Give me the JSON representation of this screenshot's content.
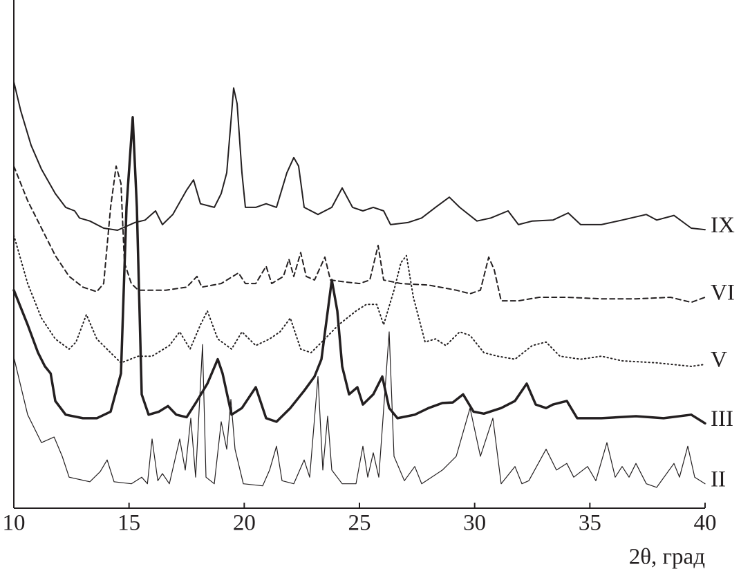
{
  "chart_data": {
    "type": "line",
    "x_label": "2θ, град",
    "xlim": [
      10,
      40
    ],
    "xticks": [
      10,
      15,
      20,
      25,
      30,
      35,
      40
    ],
    "ylim": [
      0,
      100
    ],
    "grid": false,
    "series": [
      {
        "name": "IX",
        "color": "#231f20",
        "width": 2,
        "dash": "none",
        "x": [
          10,
          10.3,
          10.75,
          11.2,
          11.8,
          12.25,
          12.64,
          12.85,
          13.3,
          13.9,
          14.5,
          15.25,
          15.7,
          16.15,
          16.45,
          16.9,
          17.5,
          17.8,
          18.1,
          18.7,
          19.0,
          19.24,
          19.45,
          19.54,
          19.69,
          19.9,
          20.05,
          20.5,
          20.95,
          21.4,
          21.85,
          22.15,
          22.36,
          22.6,
          23.2,
          23.8,
          24.25,
          24.7,
          25.15,
          25.6,
          26.05,
          26.35,
          27.1,
          27.7,
          28.3,
          28.9,
          29.35,
          30.1,
          30.7,
          31.45,
          31.9,
          32.5,
          33.4,
          34.06,
          34.6,
          35.5,
          36.4,
          37.45,
          37.9,
          38.65,
          39.4,
          40
        ],
        "values": [
          83.9,
          78.2,
          71.4,
          66.7,
          61.9,
          59.2,
          58.5,
          57.1,
          56.5,
          55.1,
          54.7,
          56.2,
          56.7,
          58.5,
          55.8,
          57.8,
          62.6,
          64.6,
          59.9,
          59.2,
          61.9,
          66.0,
          77.6,
          82.7,
          79.6,
          66.0,
          59.2,
          59.2,
          59.9,
          59.2,
          66.0,
          69.0,
          67.3,
          59.2,
          57.8,
          59.2,
          63.0,
          59.2,
          58.5,
          59.2,
          58.5,
          55.8,
          56.2,
          57.1,
          59.2,
          61.2,
          59.2,
          56.5,
          57.1,
          58.5,
          55.8,
          56.5,
          56.7,
          58.1,
          55.8,
          55.8,
          56.7,
          57.8,
          56.7,
          57.6,
          55.1,
          54.8
        ]
      },
      {
        "name": "VI",
        "color": "#231f20",
        "width": 2,
        "dash": "7 5",
        "x": [
          10,
          10.6,
          11.2,
          11.8,
          12.4,
          13.0,
          13.6,
          13.9,
          14.2,
          14.44,
          14.65,
          14.8,
          15.1,
          15.4,
          16.6,
          17.5,
          17.95,
          18.16,
          19.0,
          19.75,
          20.05,
          20.5,
          20.95,
          21.19,
          21.7,
          21.94,
          22.15,
          22.45,
          22.69,
          23.05,
          23.5,
          23.74,
          24.4,
          25.0,
          25.45,
          25.81,
          26.05,
          26.8,
          28.0,
          29.2,
          29.8,
          30.25,
          30.61,
          30.85,
          31.15,
          31.9,
          32.8,
          34.0,
          35.5,
          37.0,
          38.5,
          39.4,
          40
        ],
        "values": [
          67.3,
          60.5,
          55.1,
          49.7,
          45.6,
          43.5,
          42.6,
          44.2,
          59.2,
          67.3,
          63.9,
          48.3,
          44.2,
          42.9,
          42.9,
          43.5,
          45.6,
          43.5,
          44.2,
          46.3,
          44.2,
          44.2,
          47.6,
          44.2,
          45.6,
          49.0,
          45.6,
          50.3,
          45.6,
          44.9,
          49.4,
          44.9,
          44.5,
          44.2,
          44.9,
          51.7,
          44.9,
          44.2,
          43.9,
          42.9,
          42.2,
          42.9,
          49.4,
          46.9,
          40.8,
          40.8,
          41.5,
          41.5,
          41.2,
          41.2,
          41.5,
          40.5,
          41.5
        ]
      },
      {
        "name": "V",
        "color": "#231f20",
        "width": 2,
        "dash": "1.5 4",
        "x": [
          10,
          10.6,
          11.2,
          11.8,
          12.4,
          12.7,
          13.15,
          13.6,
          14.2,
          14.65,
          15.4,
          16.0,
          16.75,
          17.2,
          17.65,
          18.1,
          18.4,
          18.85,
          19.45,
          19.9,
          20.5,
          21.1,
          21.55,
          22.0,
          22.45,
          22.9,
          23.5,
          24.1,
          24.85,
          25.3,
          25.75,
          26.05,
          26.5,
          26.8,
          27.04,
          27.34,
          27.85,
          28.3,
          28.75,
          29.35,
          29.8,
          30.4,
          31.0,
          31.75,
          32.5,
          33.1,
          33.7,
          34.6,
          35.5,
          36.4,
          37.9,
          39.4,
          40
        ],
        "values": [
          53.7,
          44.2,
          37.4,
          33.3,
          31.3,
          32.7,
          38.1,
          33.3,
          30.6,
          28.6,
          29.9,
          29.9,
          32.0,
          34.7,
          31.3,
          36.1,
          38.8,
          33.3,
          31.3,
          34.7,
          32.0,
          33.3,
          34.7,
          37.4,
          31.3,
          30.6,
          33.3,
          36.1,
          38.8,
          40.1,
          40.1,
          36.1,
          42.9,
          48.3,
          49.7,
          41.5,
          32.7,
          33.3,
          32.0,
          34.7,
          34.0,
          30.6,
          29.9,
          29.3,
          32.0,
          32.7,
          29.9,
          29.3,
          29.9,
          29.0,
          28.6,
          27.9,
          28.3
        ]
      },
      {
        "name": "III",
        "color": "#231f20",
        "width": 3.5,
        "dash": "none",
        "x": [
          10,
          10.6,
          11.05,
          11.35,
          11.6,
          11.8,
          12.25,
          13.0,
          13.6,
          14.2,
          14.65,
          14.89,
          15.16,
          15.34,
          15.55,
          15.85,
          16.3,
          16.69,
          17.05,
          17.5,
          17.95,
          18.4,
          18.85,
          19.06,
          19.45,
          19.9,
          20.5,
          20.95,
          21.4,
          22.0,
          22.6,
          23.05,
          23.35,
          23.8,
          24.04,
          24.25,
          24.55,
          24.91,
          25.15,
          25.6,
          25.99,
          26.29,
          26.65,
          27.4,
          28.0,
          28.6,
          29.05,
          29.5,
          29.95,
          30.4,
          31.15,
          31.75,
          32.26,
          32.65,
          33.1,
          33.4,
          34.0,
          34.45,
          35.5,
          37.0,
          38.2,
          39.4,
          40
        ],
        "values": [
          42.9,
          36.1,
          30.6,
          27.9,
          26.5,
          21.1,
          18.4,
          17.7,
          17.7,
          19.0,
          26.5,
          59.2,
          76.9,
          59.2,
          22.4,
          18.4,
          19.0,
          20.1,
          18.4,
          17.9,
          21.1,
          24.5,
          29.3,
          26.5,
          18.4,
          19.7,
          23.8,
          17.7,
          17.0,
          19.7,
          23.1,
          25.9,
          29.3,
          44.9,
          38.8,
          27.9,
          22.4,
          23.8,
          20.4,
          22.4,
          25.9,
          19.7,
          17.7,
          18.4,
          19.7,
          20.7,
          20.8,
          22.4,
          19.0,
          18.6,
          19.7,
          21.1,
          24.5,
          20.4,
          19.7,
          20.4,
          21.1,
          17.7,
          17.7,
          18.1,
          17.7,
          18.4,
          16.7
        ]
      },
      {
        "name": "II",
        "color": "#231f20",
        "width": 1.2,
        "dash": "none",
        "x": [
          10,
          10.6,
          11.2,
          11.75,
          12.1,
          12.4,
          13.3,
          13.75,
          14.05,
          14.35,
          15.1,
          15.55,
          15.8,
          16.0,
          16.25,
          16.45,
          16.75,
          17.2,
          17.44,
          17.68,
          17.89,
          18.19,
          18.34,
          18.7,
          19.0,
          19.24,
          19.42,
          19.6,
          19.96,
          20.8,
          21.1,
          21.4,
          21.64,
          22.15,
          22.6,
          22.84,
          23.2,
          23.41,
          23.62,
          23.8,
          24.25,
          24.85,
          25.15,
          25.36,
          25.6,
          25.84,
          26.29,
          26.5,
          26.95,
          27.4,
          27.7,
          28.6,
          29.2,
          29.8,
          30.25,
          30.79,
          31.15,
          31.75,
          32.05,
          32.35,
          33.1,
          33.55,
          34.0,
          34.3,
          34.9,
          35.26,
          35.74,
          36.1,
          36.4,
          36.7,
          37.0,
          37.45,
          37.9,
          38.65,
          38.89,
          39.25,
          39.55,
          40
        ],
        "values": [
          29.7,
          18.4,
          12.9,
          14.0,
          10.2,
          6.1,
          5.2,
          7.2,
          9.5,
          5.2,
          4.8,
          6.1,
          4.8,
          13.6,
          5.4,
          6.8,
          4.8,
          13.6,
          7.5,
          17.7,
          6.1,
          32.2,
          6.1,
          4.8,
          17.0,
          11.6,
          21.4,
          11.6,
          4.8,
          4.4,
          7.5,
          12.2,
          5.4,
          4.8,
          9.5,
          6.1,
          25.9,
          7.5,
          18.1,
          7.5,
          4.8,
          4.8,
          12.2,
          6.1,
          10.9,
          6.1,
          34.7,
          10.2,
          5.4,
          8.2,
          4.8,
          7.5,
          10.2,
          19.7,
          10.2,
          17.7,
          4.8,
          8.2,
          4.8,
          5.4,
          11.6,
          7.5,
          8.8,
          6.1,
          8.2,
          5.4,
          12.9,
          6.1,
          8.2,
          6.1,
          8.8,
          4.8,
          4.1,
          8.8,
          6.1,
          12.2,
          6.1,
          4.8
        ]
      }
    ]
  }
}
